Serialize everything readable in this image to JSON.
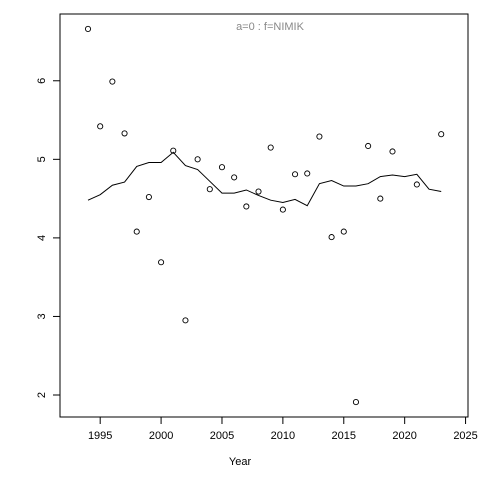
{
  "chart_data": {
    "type": "scatter",
    "annotation": "a=0  :  f=NIMIK",
    "x_label": "Year",
    "x": [
      1994,
      1995,
      1996,
      1997,
      1998,
      1999,
      2000,
      2001,
      2002,
      2003,
      2004,
      2005,
      2006,
      2007,
      2008,
      2009,
      2010,
      2011,
      2012,
      2013,
      2014,
      2015,
      2016,
      2017,
      2018,
      2019,
      2020,
      2021,
      2022,
      2023
    ],
    "series": [
      {
        "mode": "points",
        "color": "#000000",
        "values": [
          6.66,
          5.42,
          5.99,
          5.33,
          4.08,
          4.52,
          3.69,
          5.11,
          2.95,
          5.0,
          4.62,
          4.9,
          4.77,
          4.4,
          4.59,
          5.15,
          4.36,
          4.81,
          4.82,
          5.29,
          4.01,
          4.08,
          1.91,
          5.17,
          4.5,
          5.1,
          null,
          4.68,
          null,
          5.32
        ]
      },
      {
        "mode": "line",
        "color": "#000000",
        "values": [
          4.48,
          4.55,
          4.67,
          4.71,
          4.91,
          4.96,
          4.96,
          5.09,
          4.92,
          4.87,
          4.72,
          4.57,
          4.57,
          4.61,
          4.54,
          4.48,
          4.45,
          4.49,
          4.41,
          4.69,
          4.73,
          4.66,
          4.66,
          4.69,
          4.78,
          4.8,
          4.78,
          4.81,
          4.62,
          4.59
        ]
      }
    ],
    "xlim": [
      1991.7,
      2025.2
    ],
    "xticks": [
      1995,
      2000,
      2005,
      2010,
      2015,
      2020,
      2025
    ],
    "ylim": [
      1.72,
      6.85
    ],
    "yticks": [
      2,
      3,
      4,
      5,
      6
    ]
  }
}
